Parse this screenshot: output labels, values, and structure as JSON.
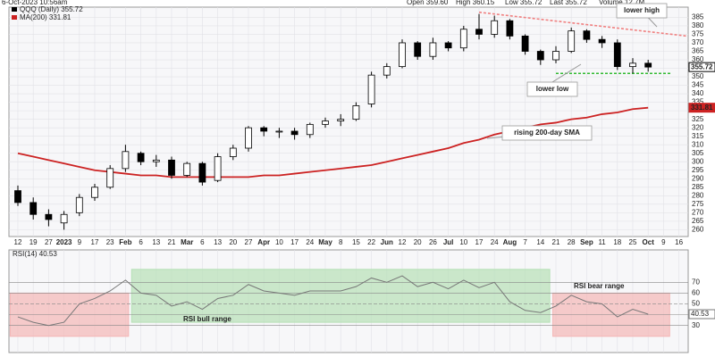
{
  "chart_data": [
    {
      "type": "candlestick",
      "header": [
        "6-Oct-2023 10:56am",
        "Open 359.60",
        "High 360.15",
        "Low 355.72",
        "Last 355.72",
        "Volume 12.7M"
      ],
      "categories": [
        "12",
        "19",
        "27",
        "2023",
        "9",
        "17",
        "23",
        "Feb",
        "6",
        "13",
        "21",
        "Mar",
        "6",
        "13",
        "20",
        "27",
        "Apr",
        "10",
        "17",
        "24",
        "May",
        "8",
        "15",
        "22",
        "Jun",
        "12",
        "20",
        "26",
        "Jul",
        "10",
        "17",
        "24",
        "Aug",
        "7",
        "14",
        "21",
        "28",
        "Sep",
        "11",
        "18",
        "25",
        "Oct",
        "9",
        "16"
      ],
      "series": [
        {
          "name": "QQQ (Daily) 355.72",
          "color": "#000000",
          "open": [
            283,
            276,
            269,
            264,
            270,
            279,
            285,
            296,
            305,
            300,
            301,
            292,
            299,
            289,
            303,
            308,
            320,
            318,
            318,
            316,
            322,
            324,
            325,
            334,
            351,
            356,
            370,
            362,
            370,
            367,
            378,
            375,
            383,
            374,
            365,
            360,
            365,
            377,
            372,
            370,
            356,
            358,
            null,
            null
          ],
          "high": [
            286,
            279,
            272,
            271,
            281,
            287,
            298,
            310,
            306,
            304,
            303,
            300,
            300,
            305,
            310,
            321,
            321,
            320,
            320,
            323,
            326,
            328,
            335,
            353,
            358,
            372,
            371,
            373,
            371,
            380,
            387,
            386,
            384,
            375,
            366,
            368,
            379,
            378,
            374,
            372,
            361,
            360,
            null,
            null
          ],
          "low": [
            274,
            266,
            262,
            260,
            268,
            277,
            284,
            294,
            298,
            297,
            290,
            291,
            286,
            288,
            301,
            306,
            315,
            314,
            313,
            314,
            320,
            321,
            324,
            332,
            349,
            355,
            360,
            360,
            365,
            365,
            372,
            373,
            372,
            363,
            357,
            358,
            364,
            370,
            367,
            354,
            352,
            353,
            null,
            null
          ],
          "values": [
            276,
            269,
            266,
            269,
            279,
            285,
            296,
            306,
            300,
            301,
            292,
            299,
            288,
            303,
            308,
            320,
            318,
            318,
            316,
            322,
            324,
            325,
            333,
            351,
            356,
            370,
            362,
            370,
            367,
            378,
            375,
            383,
            374,
            365,
            360,
            365,
            377,
            372,
            370,
            356,
            358,
            355.72,
            null,
            null
          ],
          "last_label": "355.72"
        },
        {
          "name": "MA(200) 331.81",
          "color": "#cc2222",
          "values": [
            305,
            303,
            301,
            299,
            297,
            295,
            294,
            293,
            292,
            292,
            291,
            291,
            291,
            291,
            291,
            291,
            292,
            292,
            293,
            294,
            295,
            296,
            297,
            298,
            300,
            302,
            304,
            306,
            308,
            311,
            313,
            316,
            318,
            320,
            322,
            323,
            325,
            326,
            328,
            329,
            331,
            331.81,
            null,
            null
          ],
          "last_label": "331.81"
        }
      ],
      "ylim": [
        256,
        391
      ],
      "yticks": [
        260,
        265,
        270,
        275,
        280,
        285,
        290,
        295,
        300,
        305,
        310,
        315,
        320,
        325,
        330,
        335,
        340,
        345,
        350,
        355,
        360,
        365,
        370,
        375,
        380,
        385
      ],
      "grid": true,
      "trendlines": [
        {
          "x": [
            30,
            43.5
          ],
          "y": [
            388,
            374
          ],
          "color": "#f08080"
        },
        {
          "x": [
            35,
            42.5
          ],
          "y": [
            352,
            352
          ],
          "color": "#33bb33"
        }
      ],
      "annotations": [
        "lower high",
        "lower low",
        "rising 200-day SMA"
      ]
    },
    {
      "type": "line",
      "series": [
        {
          "name": "RSI(14) 40.53",
          "color": "#777777",
          "values": [
            38,
            33,
            30,
            33,
            50,
            55,
            62,
            72,
            60,
            58,
            48,
            52,
            45,
            55,
            58,
            68,
            62,
            60,
            58,
            62,
            62,
            62,
            66,
            74,
            70,
            76,
            66,
            70,
            64,
            72,
            65,
            70,
            52,
            44,
            42,
            48,
            58,
            52,
            50,
            38,
            45,
            40.53,
            null,
            null
          ],
          "last_label": "40.53"
        }
      ],
      "ylim": [
        5,
        100
      ],
      "yticks": [
        30,
        40,
        50,
        60,
        70
      ],
      "zones": [
        {
          "from": -0.5,
          "to": 7.2,
          "low": 20,
          "high": 60,
          "color": "#f4b6b6"
        },
        {
          "label": "RSI bull range",
          "from": 7.4,
          "to": 34.6,
          "low": 33,
          "high": 82,
          "color": "#b6e0b6"
        },
        {
          "label": "RSI bear range",
          "from": 34.8,
          "to": 42.4,
          "low": 20,
          "high": 60,
          "color": "#f4b6b6"
        }
      ]
    }
  ]
}
